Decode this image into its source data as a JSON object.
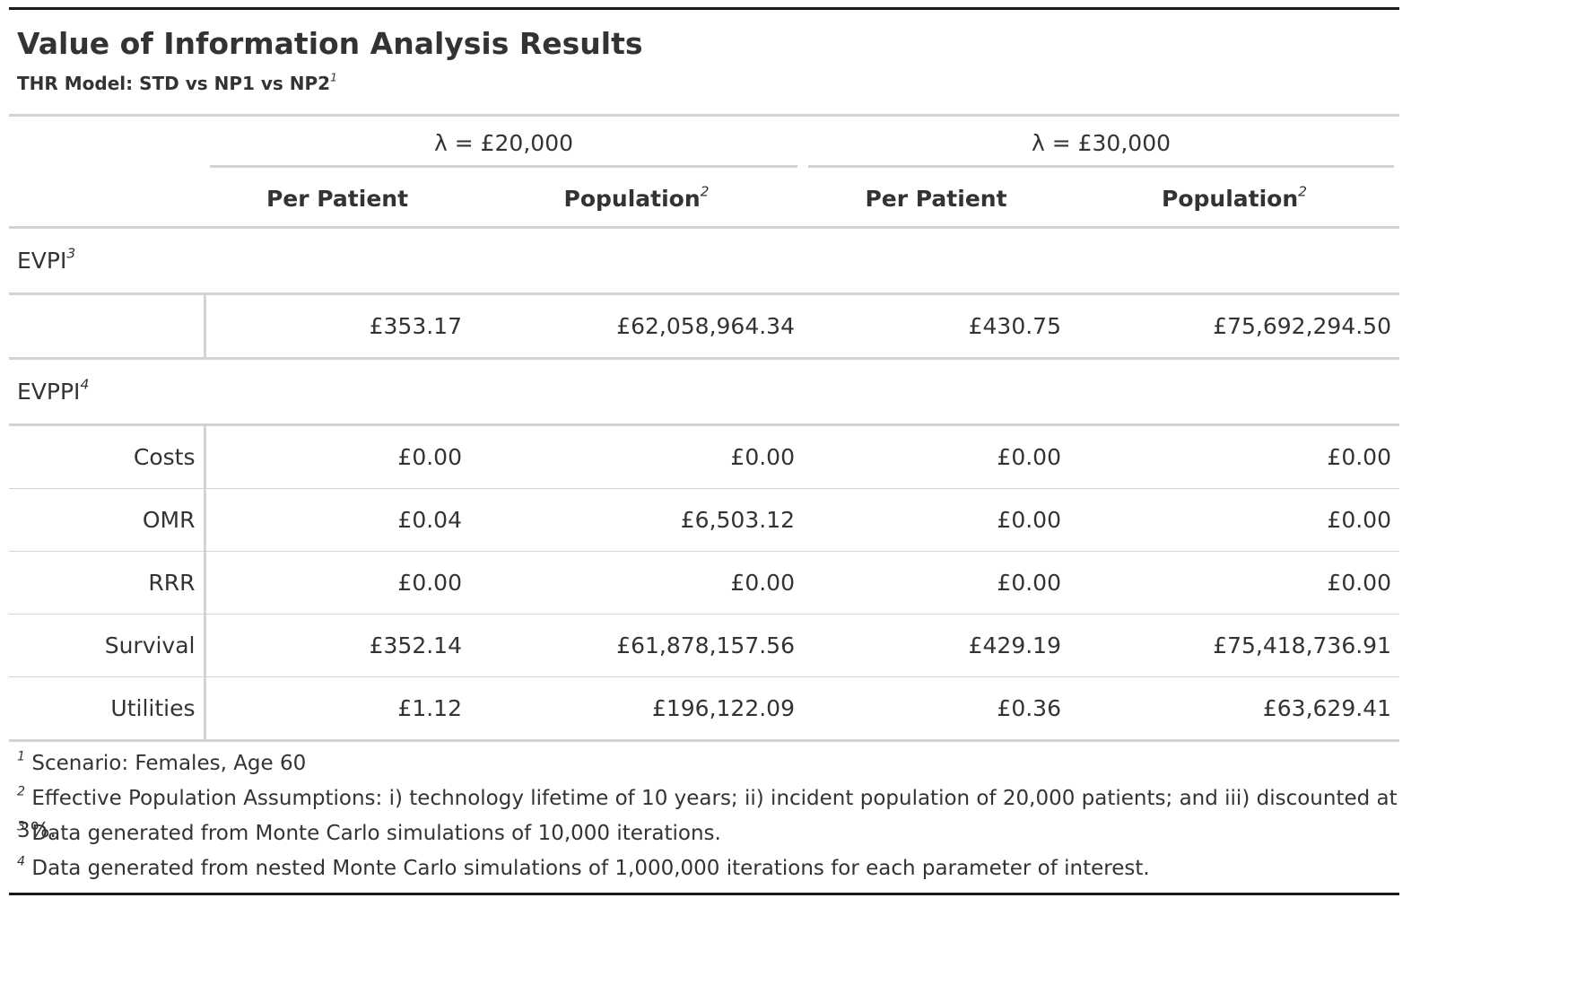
{
  "title": "Value of Information Analysis Results",
  "subtitle": "THR Model: STD vs NP1 vs NP2",
  "subtitle_mark": "1",
  "spanners": [
    {
      "label": "λ = £20,000"
    },
    {
      "label": "λ = £30,000"
    }
  ],
  "columns": {
    "per_patient": "Per Patient",
    "population": "Population",
    "population_mark": "2"
  },
  "groups": {
    "evpi": {
      "label": "EVPI",
      "mark": "3"
    },
    "evppi": {
      "label": "EVPPI",
      "mark": "4"
    }
  },
  "evpi_row": {
    "stub": "",
    "values": [
      "£353.17",
      "£62,058,964.34",
      "£430.75",
      "£75,692,294.50"
    ]
  },
  "evppi_rows": [
    {
      "stub": "Costs",
      "values": [
        "£0.00",
        "£0.00",
        "£0.00",
        "£0.00"
      ]
    },
    {
      "stub": "OMR",
      "values": [
        "£0.04",
        "£6,503.12",
        "£0.00",
        "£0.00"
      ]
    },
    {
      "stub": "RRR",
      "values": [
        "£0.00",
        "£0.00",
        "£0.00",
        "£0.00"
      ]
    },
    {
      "stub": "Survival",
      "values": [
        "£352.14",
        "£61,878,157.56",
        "£429.19",
        "£75,418,736.91"
      ]
    },
    {
      "stub": "Utilities",
      "values": [
        "£1.12",
        "£196,122.09",
        "£0.36",
        "£63,629.41"
      ]
    }
  ],
  "footnotes": [
    {
      "mark": "1",
      "text": "Scenario: Females, Age 60"
    },
    {
      "mark": "2",
      "text": "Effective Population Assumptions: i) technology lifetime of 10 years; ii) incident population of 20,000 patients; and iii) discounted at 3%."
    },
    {
      "mark": "3",
      "text": "Data generated from Monte Carlo simulations of 10,000 iterations."
    },
    {
      "mark": "4",
      "text": "Data generated from nested Monte Carlo simulations of 1,000,000 iterations for each parameter of interest."
    }
  ]
}
